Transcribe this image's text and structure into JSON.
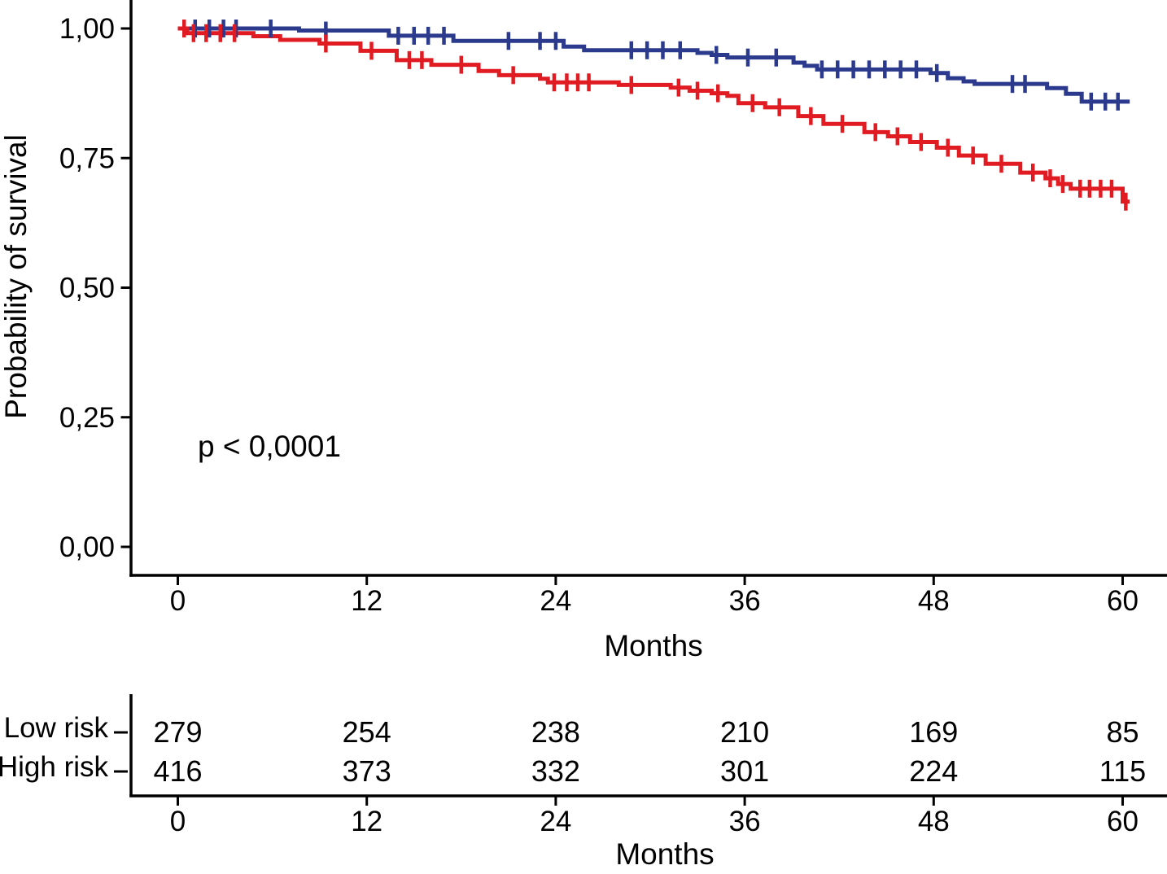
{
  "figure": {
    "background": "#ffffff",
    "colors": {
      "axis": "#000000",
      "low_risk": "#2b3a8d",
      "high_risk": "#e11b22"
    }
  },
  "chart_data": {
    "type": "line",
    "subtype": "kaplan-meier-step-curves",
    "title": "",
    "xlabel": "Months",
    "ylabel": "Probability of survival",
    "annotation": "p < 0,0001",
    "xlim": [
      0,
      60
    ],
    "ylim": [
      0.0,
      1.0
    ],
    "grid": false,
    "legend_position": "none",
    "x_axis": {
      "ticks": [
        0,
        12,
        24,
        36,
        48,
        60
      ],
      "tick_labels": [
        "0",
        "12",
        "24",
        "36",
        "48",
        "60"
      ]
    },
    "y_axis": {
      "ticks": [
        {
          "v": 1.0,
          "label": "1,00"
        },
        {
          "v": 0.75,
          "label": "0,75"
        },
        {
          "v": 0.5,
          "label": "0,50"
        },
        {
          "v": 0.25,
          "label": "0,25"
        },
        {
          "v": 0.0,
          "label": "0,00"
        }
      ]
    },
    "series": [
      {
        "name": "Low risk",
        "color": "#2b3a8d",
        "end_month": 60.45,
        "steps": [
          [
            0,
            1.0
          ],
          [
            7.7,
            0.996
          ],
          [
            13.4,
            0.986
          ],
          [
            17.5,
            0.976
          ],
          [
            24.5,
            0.965
          ],
          [
            25.8,
            0.958
          ],
          [
            33.0,
            0.953
          ],
          [
            33.9,
            0.949
          ],
          [
            34.9,
            0.944
          ],
          [
            39.1,
            0.934
          ],
          [
            39.8,
            0.928
          ],
          [
            40.6,
            0.921
          ],
          [
            47.8,
            0.914
          ],
          [
            48.9,
            0.904
          ],
          [
            49.9,
            0.898
          ],
          [
            50.6,
            0.893
          ],
          [
            55.2,
            0.885
          ],
          [
            56.4,
            0.874
          ],
          [
            57.4,
            0.859
          ]
        ],
        "censors": [
          [
            1.1,
            1.0
          ],
          [
            2.0,
            1.0
          ],
          [
            2.9,
            1.0
          ],
          [
            3.7,
            1.0
          ],
          [
            5.9,
            1.0
          ],
          [
            9.4,
            0.996
          ],
          [
            14.0,
            0.986
          ],
          [
            15.0,
            0.986
          ],
          [
            15.9,
            0.986
          ],
          [
            16.9,
            0.986
          ],
          [
            21.0,
            0.976
          ],
          [
            23.0,
            0.976
          ],
          [
            24.0,
            0.976
          ],
          [
            28.8,
            0.958
          ],
          [
            29.8,
            0.958
          ],
          [
            30.8,
            0.958
          ],
          [
            31.9,
            0.958
          ],
          [
            34.2,
            0.949
          ],
          [
            36.2,
            0.944
          ],
          [
            38.0,
            0.944
          ],
          [
            40.9,
            0.921
          ],
          [
            41.9,
            0.921
          ],
          [
            42.9,
            0.921
          ],
          [
            43.9,
            0.921
          ],
          [
            44.9,
            0.921
          ],
          [
            45.9,
            0.921
          ],
          [
            46.9,
            0.921
          ],
          [
            48.2,
            0.914
          ],
          [
            53.0,
            0.893
          ],
          [
            53.8,
            0.893
          ],
          [
            58.0,
            0.859
          ],
          [
            58.9,
            0.859
          ],
          [
            59.7,
            0.859
          ]
        ]
      },
      {
        "name": "High risk",
        "color": "#e11b22",
        "end_month": 60.45,
        "steps": [
          [
            0,
            1.0
          ],
          [
            0.6,
            0.991
          ],
          [
            4.8,
            0.985
          ],
          [
            6.5,
            0.978
          ],
          [
            9.0,
            0.971
          ],
          [
            11.6,
            0.957
          ],
          [
            13.9,
            0.939
          ],
          [
            16.1,
            0.93
          ],
          [
            19.1,
            0.918
          ],
          [
            20.4,
            0.91
          ],
          [
            23.0,
            0.903
          ],
          [
            23.5,
            0.896
          ],
          [
            28.0,
            0.891
          ],
          [
            31.3,
            0.886
          ],
          [
            32.5,
            0.88
          ],
          [
            33.9,
            0.875
          ],
          [
            34.9,
            0.87
          ],
          [
            35.6,
            0.856
          ],
          [
            37.3,
            0.848
          ],
          [
            39.4,
            0.831
          ],
          [
            41.0,
            0.816
          ],
          [
            43.6,
            0.8
          ],
          [
            45.1,
            0.792
          ],
          [
            46.5,
            0.781
          ],
          [
            48.2,
            0.77
          ],
          [
            49.6,
            0.755
          ],
          [
            51.3,
            0.739
          ],
          [
            53.5,
            0.722
          ],
          [
            55.1,
            0.711
          ],
          [
            55.9,
            0.7
          ],
          [
            56.7,
            0.691
          ],
          [
            60.0,
            0.666
          ]
        ],
        "censors": [
          [
            0.4,
            1.0
          ],
          [
            1.0,
            0.991
          ],
          [
            1.8,
            0.991
          ],
          [
            2.7,
            0.991
          ],
          [
            3.6,
            0.991
          ],
          [
            9.4,
            0.971
          ],
          [
            12.3,
            0.957
          ],
          [
            14.7,
            0.939
          ],
          [
            15.5,
            0.939
          ],
          [
            18.0,
            0.93
          ],
          [
            21.3,
            0.91
          ],
          [
            23.9,
            0.896
          ],
          [
            24.7,
            0.896
          ],
          [
            25.4,
            0.896
          ],
          [
            26.1,
            0.896
          ],
          [
            28.8,
            0.891
          ],
          [
            31.8,
            0.886
          ],
          [
            33.0,
            0.88
          ],
          [
            34.3,
            0.875
          ],
          [
            36.5,
            0.856
          ],
          [
            38.2,
            0.848
          ],
          [
            40.2,
            0.831
          ],
          [
            42.2,
            0.816
          ],
          [
            44.3,
            0.8
          ],
          [
            45.7,
            0.792
          ],
          [
            47.2,
            0.781
          ],
          [
            48.9,
            0.77
          ],
          [
            50.5,
            0.755
          ],
          [
            52.3,
            0.739
          ],
          [
            54.3,
            0.722
          ],
          [
            55.4,
            0.711
          ],
          [
            56.2,
            0.7
          ],
          [
            57.3,
            0.691
          ],
          [
            57.9,
            0.691
          ],
          [
            58.6,
            0.691
          ],
          [
            59.3,
            0.691
          ],
          [
            60.2,
            0.666
          ]
        ]
      }
    ],
    "risk_table": {
      "xlabel": "Months",
      "x_ticks": [
        0,
        12,
        24,
        36,
        48,
        60
      ],
      "rows": [
        {
          "label": "Low risk",
          "color": "#2b3a8d",
          "values": [
            "279",
            "254",
            "238",
            "210",
            "169",
            "85"
          ]
        },
        {
          "label": "High risk",
          "color": "#e11b22",
          "values": [
            "416",
            "373",
            "332",
            "301",
            "224",
            "115"
          ]
        }
      ]
    }
  }
}
